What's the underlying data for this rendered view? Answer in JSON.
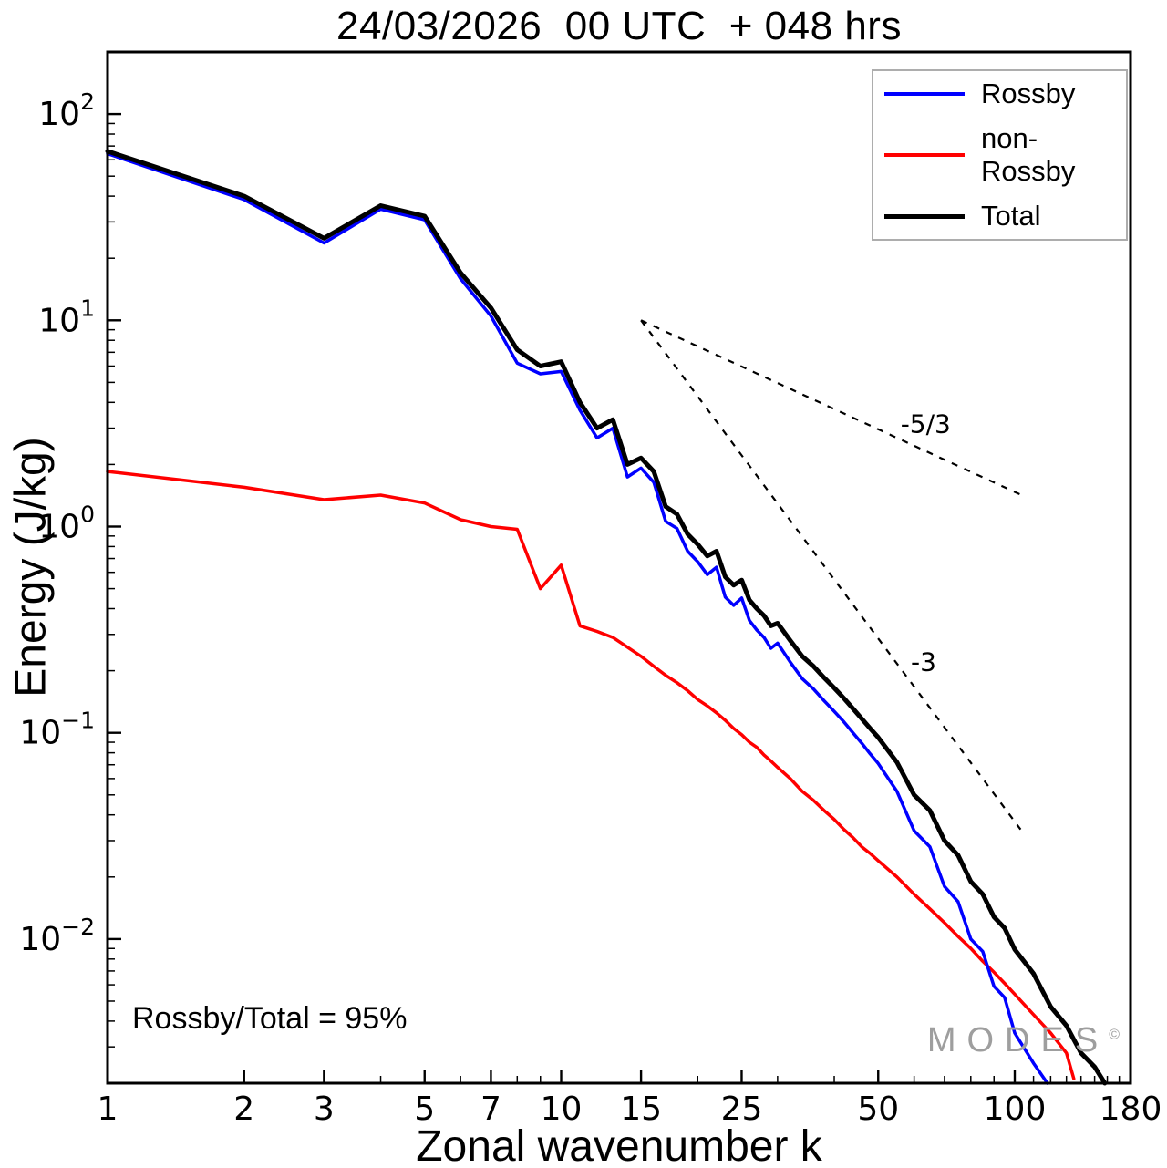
{
  "chart_data": {
    "type": "line",
    "title": "24/03/2026  00 UTC  + 048 hrs",
    "xlabel": "Zonal wavenumber k",
    "ylabel": "Energy (J/kg)",
    "x_scale": "log",
    "y_scale": "log",
    "xlim": [
      1,
      180
    ],
    "ylim": [
      0.002,
      200
    ],
    "grid": false,
    "legend_position": "upper right",
    "x_ticks": [
      {
        "v": 1,
        "label": "1"
      },
      {
        "v": 2,
        "label": "2"
      },
      {
        "v": 3,
        "label": "3"
      },
      {
        "v": 5,
        "label": "5"
      },
      {
        "v": 7,
        "label": "7"
      },
      {
        "v": 10,
        "label": "10"
      },
      {
        "v": 15,
        "label": "15"
      },
      {
        "v": 25,
        "label": "25"
      },
      {
        "v": 50,
        "label": "50"
      },
      {
        "v": 100,
        "label": "100"
      },
      {
        "v": 180,
        "label": "180"
      }
    ],
    "x_minor_ticks": [
      4,
      6,
      8,
      9,
      20,
      30,
      40,
      60,
      70,
      80,
      90,
      110,
      120,
      130,
      140,
      150,
      160,
      170
    ],
    "y_ticks": [
      {
        "v": 100,
        "base": "10",
        "exp": "2"
      },
      {
        "v": 10,
        "base": "10",
        "exp": "1"
      },
      {
        "v": 1,
        "base": "10",
        "exp": "0"
      },
      {
        "v": 0.1,
        "base": "10",
        "exp": "−1"
      },
      {
        "v": 0.01,
        "base": "10",
        "exp": "−2"
      }
    ],
    "series": [
      {
        "name": "Rossby",
        "color": "#0000ff",
        "line_width": 3.5,
        "k": [
          1,
          2,
          3,
          4,
          5,
          6,
          7,
          8,
          9,
          10,
          11,
          12,
          13,
          14,
          15,
          16,
          17,
          18,
          19,
          20,
          21,
          22,
          23,
          24,
          25,
          26,
          27,
          28,
          29,
          30,
          32,
          34,
          36,
          38,
          40,
          42,
          44,
          46,
          48,
          50,
          55,
          60,
          65,
          70,
          75,
          80,
          85,
          90,
          95,
          100,
          110,
          118
        ],
        "values": [
          64.2,
          38.5,
          23.7,
          34.6,
          30.7,
          15.9,
          10.5,
          6.2,
          5.5,
          5.65,
          3.67,
          2.69,
          3.0,
          1.74,
          1.92,
          1.64,
          1.06,
          0.98,
          0.76,
          0.675,
          0.585,
          0.635,
          0.455,
          0.415,
          0.45,
          0.35,
          0.315,
          0.29,
          0.257,
          0.272,
          0.22,
          0.183,
          0.163,
          0.143,
          0.127,
          0.113,
          0.1,
          0.089,
          0.079,
          0.071,
          0.052,
          0.0335,
          0.028,
          0.018,
          0.0152,
          0.01,
          0.0087,
          0.0059,
          0.0052,
          0.0035,
          0.0025,
          0.002
        ]
      },
      {
        "name": "non-Rossby",
        "color": "#ff0000",
        "line_width": 3.5,
        "k": [
          1,
          2,
          3,
          4,
          5,
          6,
          7,
          8,
          9,
          10,
          11,
          12,
          13,
          14,
          15,
          16,
          17,
          18,
          19,
          20,
          21,
          22,
          23,
          24,
          25,
          26,
          27,
          28,
          29,
          30,
          32,
          34,
          36,
          38,
          40,
          42,
          44,
          46,
          48,
          50,
          55,
          60,
          65,
          70,
          75,
          80,
          85,
          90,
          95,
          100,
          110,
          120,
          130,
          135
        ],
        "values": [
          1.85,
          1.55,
          1.35,
          1.42,
          1.3,
          1.08,
          1.0,
          0.97,
          0.5,
          0.65,
          0.33,
          0.31,
          0.29,
          0.26,
          0.235,
          0.21,
          0.19,
          0.175,
          0.16,
          0.145,
          0.135,
          0.125,
          0.115,
          0.105,
          0.098,
          0.09,
          0.085,
          0.078,
          0.073,
          0.068,
          0.06,
          0.052,
          0.047,
          0.042,
          0.038,
          0.034,
          0.031,
          0.028,
          0.026,
          0.024,
          0.02,
          0.0165,
          0.014,
          0.012,
          0.0103,
          0.009,
          0.0078,
          0.0069,
          0.0061,
          0.0054,
          0.0043,
          0.0035,
          0.0028,
          0.0021
        ]
      },
      {
        "name": "Total",
        "color": "#000000",
        "line_width": 5,
        "k": [
          1,
          2,
          3,
          4,
          5,
          6,
          7,
          8,
          9,
          10,
          11,
          12,
          13,
          14,
          15,
          16,
          17,
          18,
          19,
          20,
          21,
          22,
          23,
          24,
          25,
          26,
          27,
          28,
          29,
          30,
          32,
          34,
          36,
          38,
          40,
          42,
          44,
          46,
          48,
          50,
          55,
          60,
          65,
          70,
          75,
          80,
          85,
          90,
          95,
          100,
          110,
          120,
          130,
          140,
          150,
          158
        ],
        "values": [
          66,
          40,
          25,
          36,
          32,
          17,
          11.5,
          7.2,
          6.0,
          6.3,
          4.0,
          3.0,
          3.3,
          2.0,
          2.15,
          1.85,
          1.25,
          1.15,
          0.92,
          0.82,
          0.72,
          0.76,
          0.57,
          0.52,
          0.55,
          0.44,
          0.4,
          0.37,
          0.33,
          0.34,
          0.28,
          0.235,
          0.21,
          0.185,
          0.165,
          0.147,
          0.131,
          0.117,
          0.105,
          0.095,
          0.072,
          0.05,
          0.042,
          0.03,
          0.0255,
          0.019,
          0.0165,
          0.0128,
          0.0113,
          0.0089,
          0.0068,
          0.0047,
          0.0038,
          0.0028,
          0.0024,
          0.002
        ]
      }
    ],
    "reference_lines": [
      {
        "label": "-5/3",
        "x1": 15,
        "y1": 10,
        "x2": 105,
        "y2": 1.4,
        "label_x": 56,
        "label_y": 2.85
      },
      {
        "label": "-3",
        "x1": 15,
        "y1": 10,
        "x2": 103,
        "y2": 0.034,
        "label_x": 59,
        "label_y": 0.2
      }
    ]
  },
  "annotation": "Rossby/Total = 95%",
  "watermark": {
    "text": "MODES",
    "symbol": "©"
  }
}
